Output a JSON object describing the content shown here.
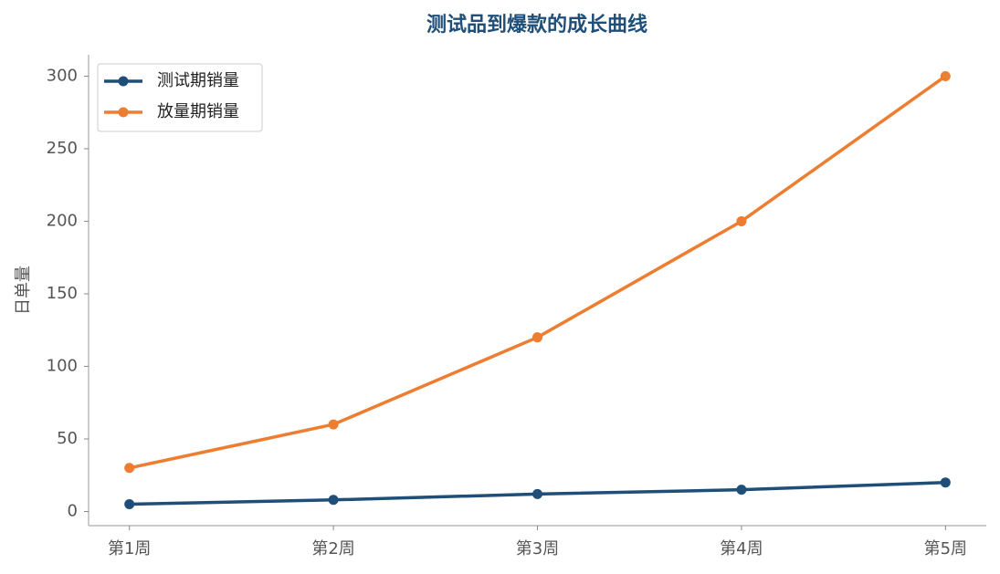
{
  "chart_data": {
    "type": "line",
    "title": "测试品到爆款的成长曲线",
    "y_label": "日单量",
    "categories": [
      "第1周",
      "第2周",
      "第3周",
      "第4周",
      "第5周"
    ],
    "series": [
      {
        "name": "测试期销量",
        "color": "#1f4e79",
        "values": [
          5,
          8,
          12,
          15,
          20
        ]
      },
      {
        "name": "放量期销量",
        "color": "#ed7d31",
        "values": [
          30,
          60,
          120,
          200,
          300
        ]
      }
    ],
    "ylim": [
      -9.75,
      314.75
    ],
    "yticks": [
      0,
      50,
      100,
      150,
      200,
      250,
      300
    ],
    "grid": false,
    "legend": "upper-left"
  }
}
